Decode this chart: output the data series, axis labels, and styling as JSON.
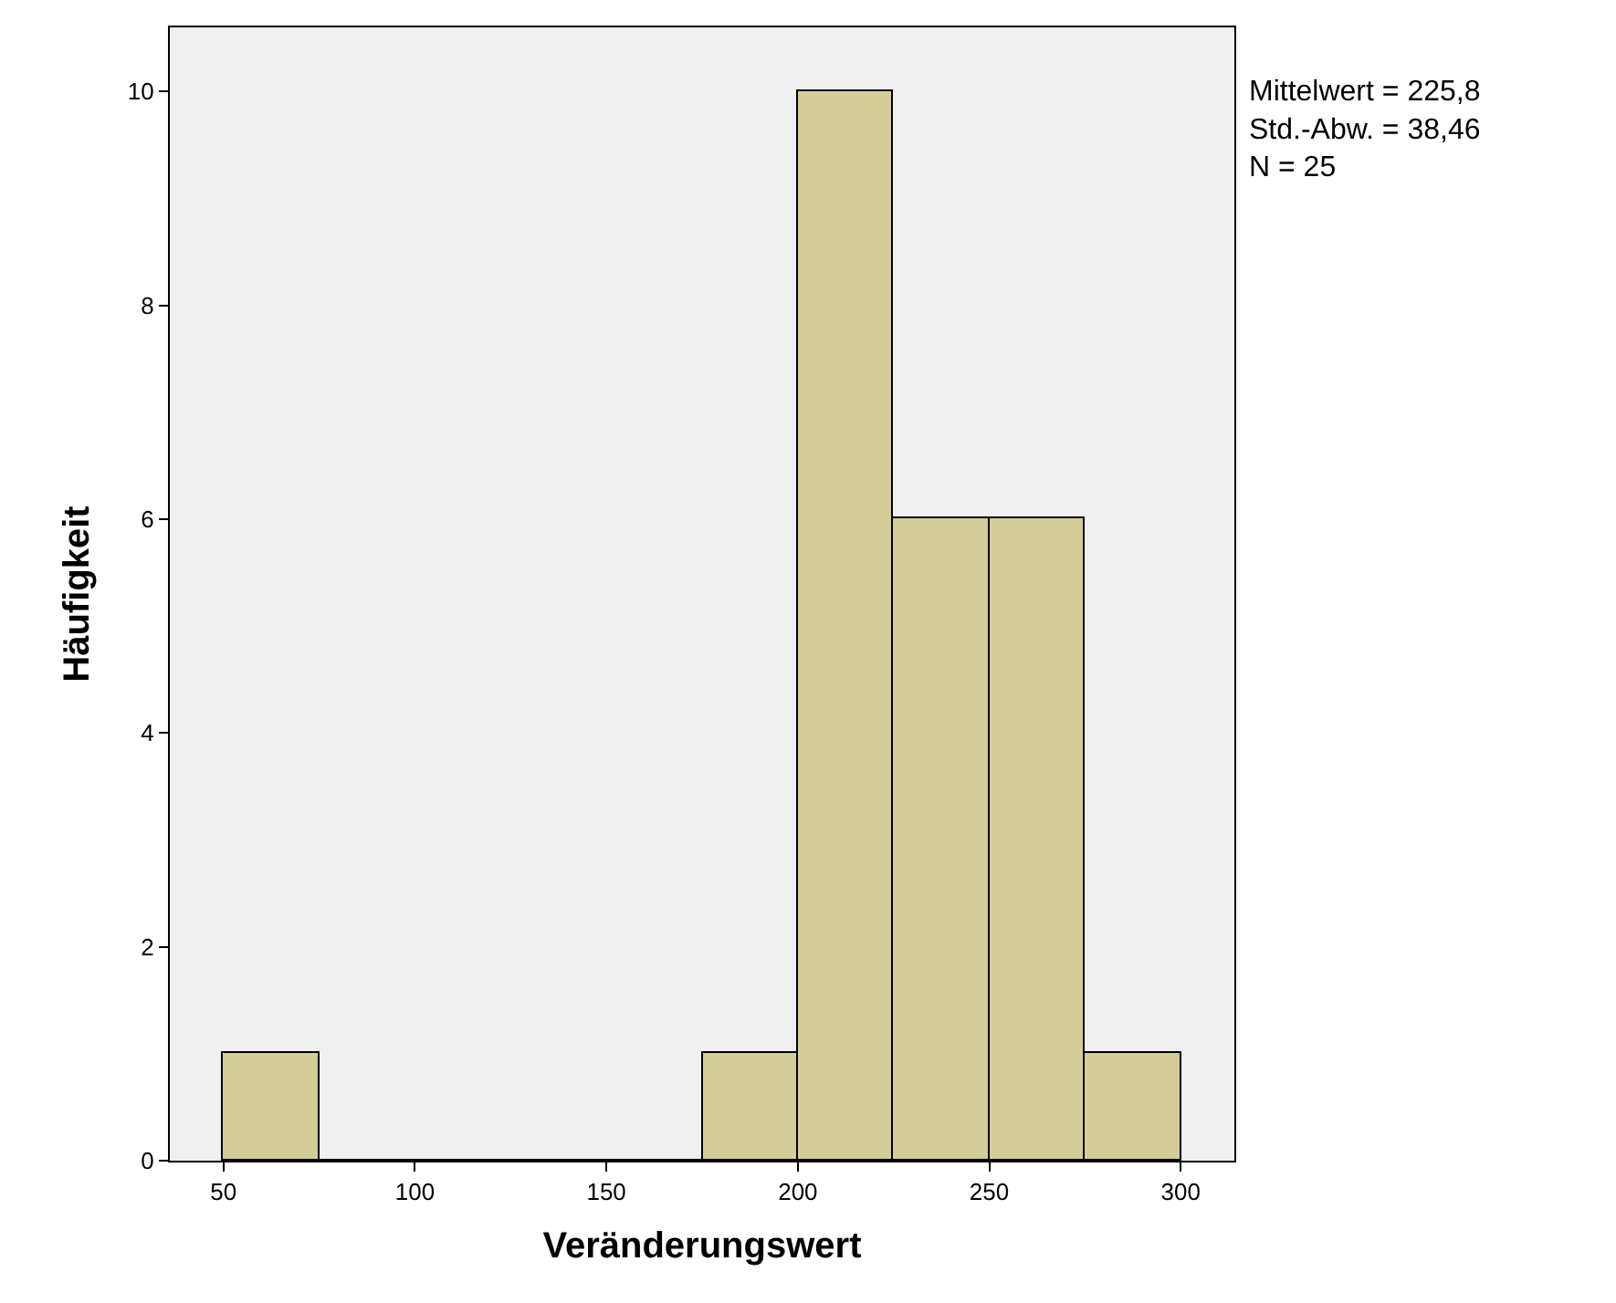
{
  "chart_data": {
    "type": "histogram",
    "xlabel": "Veränderungswert",
    "ylabel": "Häufigkeit",
    "bins": [
      50,
      75,
      100,
      125,
      150,
      175,
      200,
      225,
      250,
      275,
      300
    ],
    "values": [
      1,
      0,
      0,
      0,
      0,
      1,
      10,
      6,
      6,
      1
    ],
    "color": "#d3ce98",
    "xlim": [
      36,
      314
    ],
    "xticks": [
      50,
      100,
      150,
      200,
      250,
      300
    ],
    "ylim": [
      0,
      10.6
    ],
    "yticks": [
      0,
      2,
      4,
      6,
      8,
      10
    ],
    "annotations": [
      "Mittelwert = 225,8",
      "Std.-Abw. = 38,46",
      "N = 25"
    ]
  }
}
